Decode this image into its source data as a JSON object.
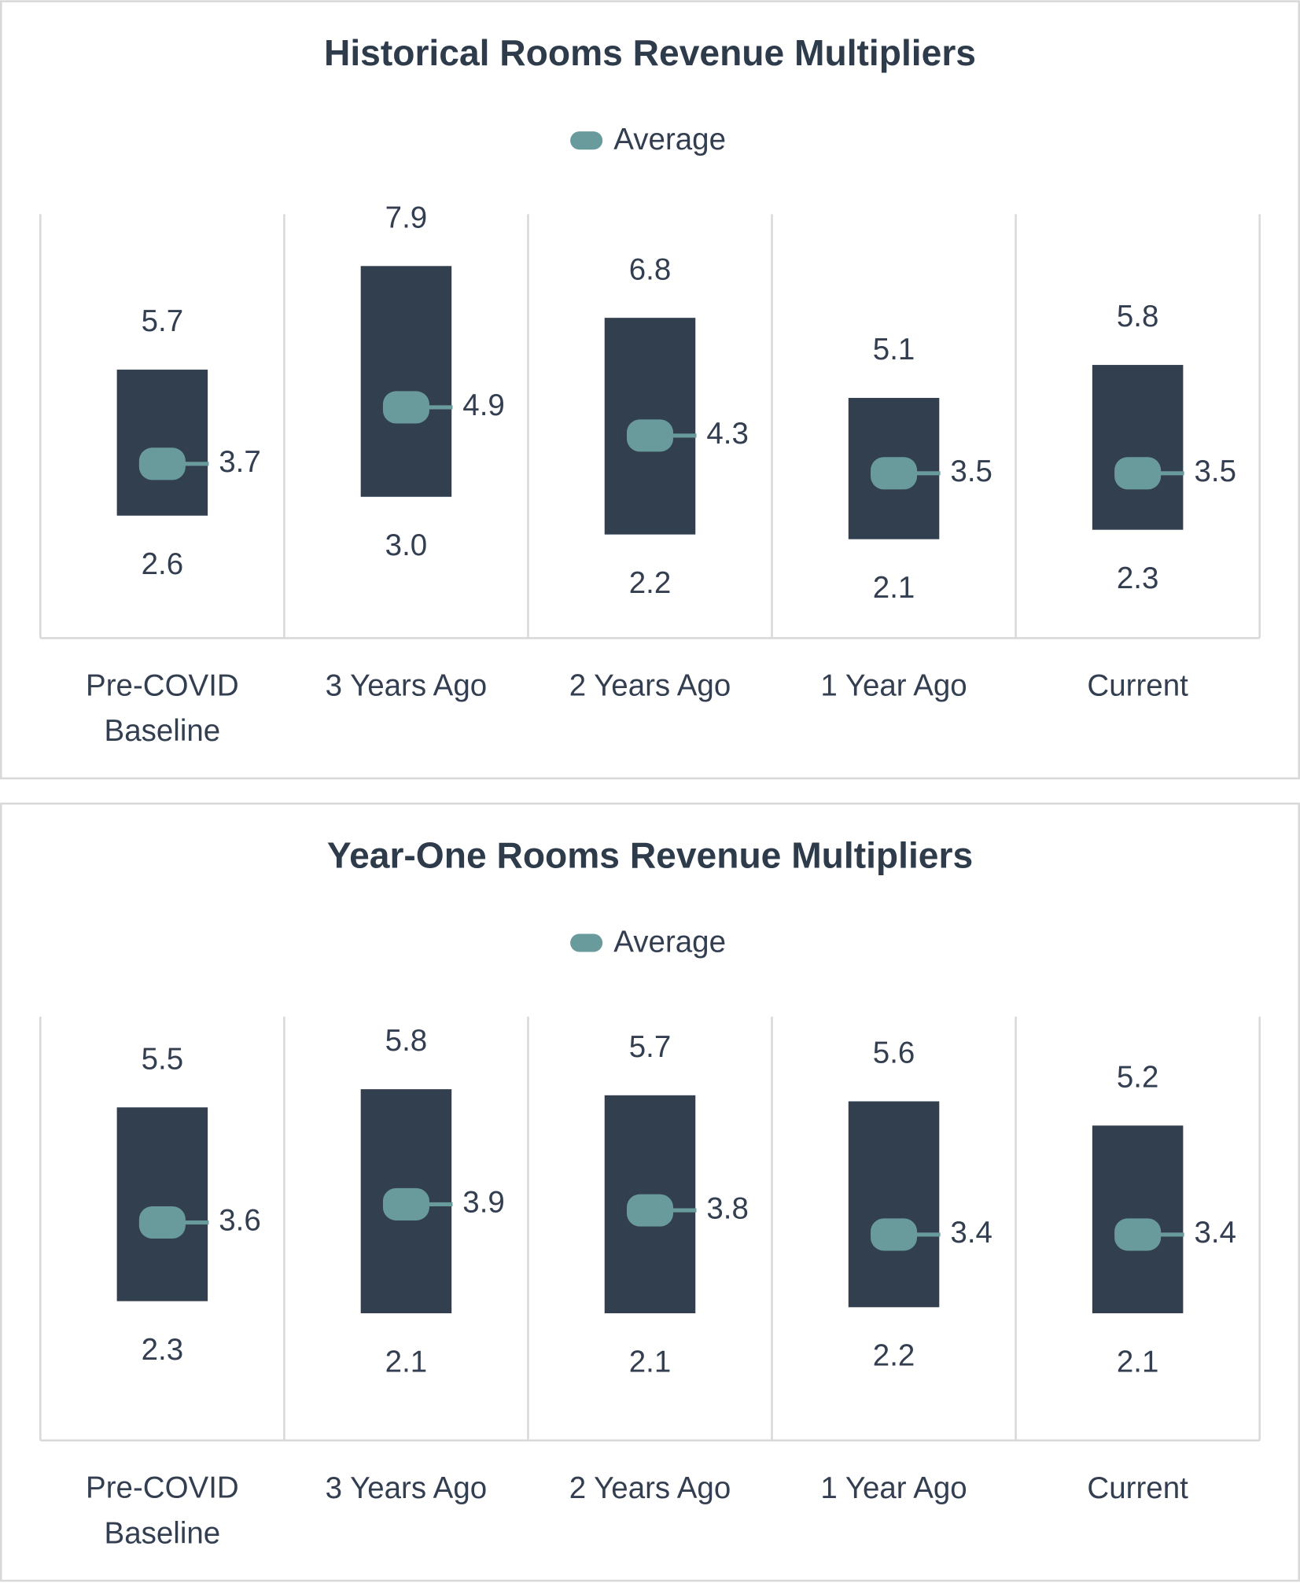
{
  "chart_data": [
    {
      "type": "range",
      "title": "Historical Rooms Revenue Multipliers",
      "categories": [
        "Pre-COVID Baseline",
        "3 Years Ago",
        "2 Years Ago",
        "1 Year Ago",
        "Current"
      ],
      "ranges": {
        "color": "#323f4e",
        "high": {
          "values": [
            5.7,
            7.9,
            6.8,
            5.1,
            5.8
          ],
          "value_labels": [
            "5.7",
            "7.9",
            "6.8",
            "5.1",
            "5.8"
          ]
        },
        "low": {
          "values": [
            2.6,
            3,
            2.2,
            2.1,
            2.3
          ],
          "value_labels": [
            "2.6",
            "3.0",
            "2.2",
            "2.1",
            "2.3"
          ]
        }
      },
      "series": [
        {
          "name": "Average",
          "color": "#6a9b9c",
          "values": [
            3.7,
            4.9,
            4.3,
            3.5,
            3.5
          ],
          "value_labels": [
            "3.7",
            "4.9",
            "4.3",
            "3.5",
            "3.5"
          ]
        }
      ],
      "ylim": [
        0,
        9
      ],
      "legend": "top"
    },
    {
      "type": "range",
      "title": "Year-One Rooms Revenue Multipliers",
      "categories": [
        "Pre-COVID Baseline",
        "3 Years Ago",
        "2 Years Ago",
        "1 Year Ago",
        "Current"
      ],
      "ranges": {
        "color": "#323f4e",
        "high": {
          "values": [
            5.5,
            5.8,
            5.7,
            5.6,
            5.2
          ],
          "value_labels": [
            "5.5",
            "5.8",
            "5.7",
            "5.6",
            "5.2"
          ]
        },
        "low": {
          "values": [
            2.3,
            2.1,
            2.1,
            2.2,
            2.1
          ],
          "value_labels": [
            "2.3",
            "2.1",
            "2.1",
            "2.2",
            "2.1"
          ]
        }
      },
      "series": [
        {
          "name": "Average",
          "color": "#6a9b9c",
          "values": [
            3.6,
            3.9,
            3.8,
            3.4,
            3.4
          ],
          "value_labels": [
            "3.6",
            "3.9",
            "3.8",
            "3.4",
            "3.4"
          ]
        }
      ],
      "ylim": [
        0,
        7
      ],
      "legend": "top"
    }
  ]
}
